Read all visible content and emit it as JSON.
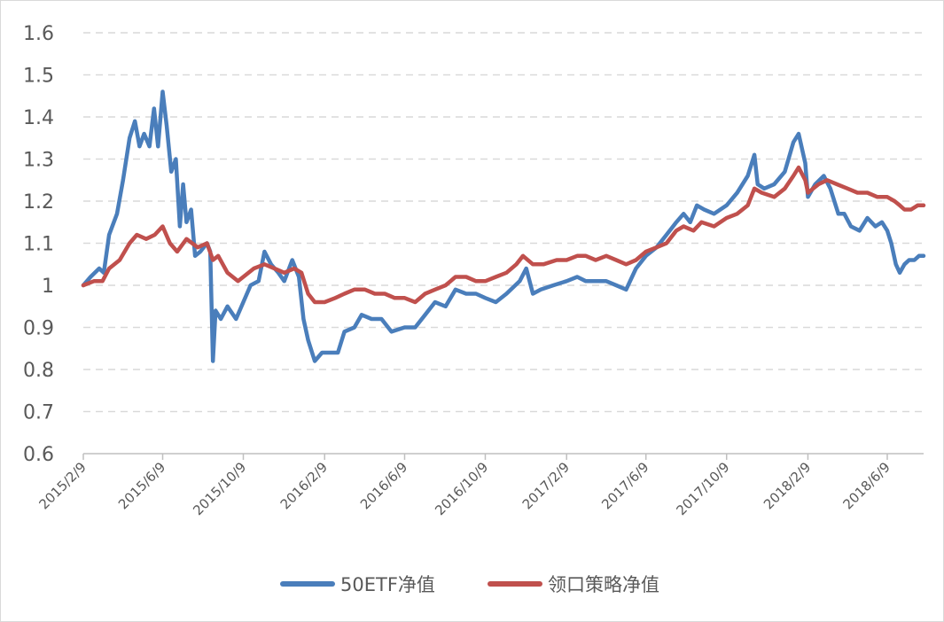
{
  "chart_data": {
    "type": "line",
    "title": "",
    "xlabel": "",
    "ylabel": "",
    "ylim": [
      0.6,
      1.6
    ],
    "y_ticks": [
      "0.6",
      "0.7",
      "0.8",
      "0.9",
      "1",
      "1.1",
      "1.2",
      "1.3",
      "1.4",
      "1.5",
      "1.6"
    ],
    "x_range": [
      "2015-02-09",
      "2018-08-03"
    ],
    "x_ticks": [
      {
        "date": "2015-02-09",
        "label": "2015/2/9"
      },
      {
        "date": "2015-06-09",
        "label": "2015/6/9"
      },
      {
        "date": "2015-10-09",
        "label": "2015/10/9"
      },
      {
        "date": "2016-02-09",
        "label": "2016/2/9"
      },
      {
        "date": "2016-06-09",
        "label": "2016/6/9"
      },
      {
        "date": "2016-10-09",
        "label": "2016/10/9"
      },
      {
        "date": "2017-02-09",
        "label": "2017/2/9"
      },
      {
        "date": "2017-06-09",
        "label": "2017/6/9"
      },
      {
        "date": "2017-10-09",
        "label": "2017/10/9"
      },
      {
        "date": "2018-02-09",
        "label": "2018/2/9"
      },
      {
        "date": "2018-06-09",
        "label": "2018/6/9"
      }
    ],
    "grid": "horizontal dashed",
    "legend_position": "bottom",
    "series": [
      {
        "name": "50ETF净值",
        "color": "#4a7ebb",
        "points": [
          [
            "2015-02-09",
            1.0
          ],
          [
            "2015-02-20",
            1.02
          ],
          [
            "2015-03-05",
            1.04
          ],
          [
            "2015-03-12",
            1.03
          ],
          [
            "2015-03-20",
            1.12
          ],
          [
            "2015-04-01",
            1.17
          ],
          [
            "2015-04-10",
            1.25
          ],
          [
            "2015-04-20",
            1.35
          ],
          [
            "2015-04-28",
            1.39
          ],
          [
            "2015-05-05",
            1.33
          ],
          [
            "2015-05-12",
            1.36
          ],
          [
            "2015-05-20",
            1.33
          ],
          [
            "2015-05-27",
            1.42
          ],
          [
            "2015-06-02",
            1.33
          ],
          [
            "2015-06-09",
            1.46
          ],
          [
            "2015-06-15",
            1.38
          ],
          [
            "2015-06-22",
            1.27
          ],
          [
            "2015-06-29",
            1.3
          ],
          [
            "2015-07-05",
            1.14
          ],
          [
            "2015-07-10",
            1.24
          ],
          [
            "2015-07-15",
            1.15
          ],
          [
            "2015-07-22",
            1.18
          ],
          [
            "2015-07-28",
            1.07
          ],
          [
            "2015-08-05",
            1.08
          ],
          [
            "2015-08-15",
            1.1
          ],
          [
            "2015-08-20",
            1.08
          ],
          [
            "2015-08-24",
            0.82
          ],
          [
            "2015-08-28",
            0.94
          ],
          [
            "2015-09-05",
            0.92
          ],
          [
            "2015-09-15",
            0.95
          ],
          [
            "2015-09-28",
            0.92
          ],
          [
            "2015-10-09",
            0.96
          ],
          [
            "2015-10-20",
            1.0
          ],
          [
            "2015-11-01",
            1.01
          ],
          [
            "2015-11-10",
            1.08
          ],
          [
            "2015-11-20",
            1.05
          ],
          [
            "2015-12-01",
            1.03
          ],
          [
            "2015-12-10",
            1.01
          ],
          [
            "2015-12-22",
            1.06
          ],
          [
            "2016-01-01",
            1.02
          ],
          [
            "2016-01-08",
            0.92
          ],
          [
            "2016-01-15",
            0.87
          ],
          [
            "2016-01-25",
            0.82
          ],
          [
            "2016-02-05",
            0.84
          ],
          [
            "2016-02-18",
            0.84
          ],
          [
            "2016-02-29",
            0.84
          ],
          [
            "2016-03-10",
            0.89
          ],
          [
            "2016-03-25",
            0.9
          ],
          [
            "2016-04-05",
            0.93
          ],
          [
            "2016-04-20",
            0.92
          ],
          [
            "2016-05-05",
            0.92
          ],
          [
            "2016-05-20",
            0.89
          ],
          [
            "2016-06-09",
            0.9
          ],
          [
            "2016-06-25",
            0.9
          ],
          [
            "2016-07-10",
            0.93
          ],
          [
            "2016-07-25",
            0.96
          ],
          [
            "2016-08-10",
            0.95
          ],
          [
            "2016-08-25",
            0.99
          ],
          [
            "2016-09-10",
            0.98
          ],
          [
            "2016-09-25",
            0.98
          ],
          [
            "2016-10-09",
            0.97
          ],
          [
            "2016-10-25",
            0.96
          ],
          [
            "2016-11-10",
            0.98
          ],
          [
            "2016-11-30",
            1.01
          ],
          [
            "2016-12-10",
            1.04
          ],
          [
            "2016-12-20",
            0.98
          ],
          [
            "2017-01-01",
            0.99
          ],
          [
            "2017-01-20",
            1.0
          ],
          [
            "2017-02-09",
            1.01
          ],
          [
            "2017-02-25",
            1.02
          ],
          [
            "2017-03-10",
            1.01
          ],
          [
            "2017-03-25",
            1.01
          ],
          [
            "2017-04-10",
            1.01
          ],
          [
            "2017-04-25",
            1.0
          ],
          [
            "2017-05-10",
            0.99
          ],
          [
            "2017-05-25",
            1.04
          ],
          [
            "2017-06-09",
            1.07
          ],
          [
            "2017-06-25",
            1.09
          ],
          [
            "2017-07-10",
            1.12
          ],
          [
            "2017-07-25",
            1.15
          ],
          [
            "2017-08-05",
            1.17
          ],
          [
            "2017-08-15",
            1.15
          ],
          [
            "2017-08-25",
            1.19
          ],
          [
            "2017-09-05",
            1.18
          ],
          [
            "2017-09-20",
            1.17
          ],
          [
            "2017-10-09",
            1.19
          ],
          [
            "2017-10-25",
            1.22
          ],
          [
            "2017-11-10",
            1.26
          ],
          [
            "2017-11-20",
            1.31
          ],
          [
            "2017-11-25",
            1.24
          ],
          [
            "2017-12-05",
            1.23
          ],
          [
            "2017-12-20",
            1.24
          ],
          [
            "2018-01-05",
            1.27
          ],
          [
            "2018-01-18",
            1.34
          ],
          [
            "2018-01-26",
            1.36
          ],
          [
            "2018-02-05",
            1.29
          ],
          [
            "2018-02-09",
            1.21
          ],
          [
            "2018-02-20",
            1.24
          ],
          [
            "2018-03-05",
            1.26
          ],
          [
            "2018-03-15",
            1.23
          ],
          [
            "2018-03-27",
            1.17
          ],
          [
            "2018-04-05",
            1.17
          ],
          [
            "2018-04-15",
            1.14
          ],
          [
            "2018-04-28",
            1.13
          ],
          [
            "2018-05-10",
            1.16
          ],
          [
            "2018-05-22",
            1.14
          ],
          [
            "2018-06-01",
            1.15
          ],
          [
            "2018-06-09",
            1.13
          ],
          [
            "2018-06-15",
            1.1
          ],
          [
            "2018-06-22",
            1.05
          ],
          [
            "2018-06-28",
            1.03
          ],
          [
            "2018-07-05",
            1.05
          ],
          [
            "2018-07-12",
            1.06
          ],
          [
            "2018-07-20",
            1.06
          ],
          [
            "2018-07-27",
            1.07
          ],
          [
            "2018-08-03",
            1.07
          ]
        ]
      },
      {
        "name": "领口策略净值",
        "color": "#c0504d",
        "points": [
          [
            "2015-02-09",
            1.0
          ],
          [
            "2015-02-25",
            1.01
          ],
          [
            "2015-03-10",
            1.01
          ],
          [
            "2015-03-20",
            1.04
          ],
          [
            "2015-04-05",
            1.06
          ],
          [
            "2015-04-20",
            1.1
          ],
          [
            "2015-05-01",
            1.12
          ],
          [
            "2015-05-15",
            1.11
          ],
          [
            "2015-05-28",
            1.12
          ],
          [
            "2015-06-09",
            1.14
          ],
          [
            "2015-06-20",
            1.1
          ],
          [
            "2015-07-01",
            1.08
          ],
          [
            "2015-07-15",
            1.11
          ],
          [
            "2015-08-01",
            1.09
          ],
          [
            "2015-08-15",
            1.1
          ],
          [
            "2015-08-24",
            1.06
          ],
          [
            "2015-09-01",
            1.07
          ],
          [
            "2015-09-15",
            1.03
          ],
          [
            "2015-10-01",
            1.01
          ],
          [
            "2015-10-09",
            1.02
          ],
          [
            "2015-10-25",
            1.04
          ],
          [
            "2015-11-10",
            1.05
          ],
          [
            "2015-11-25",
            1.04
          ],
          [
            "2015-12-10",
            1.03
          ],
          [
            "2015-12-25",
            1.04
          ],
          [
            "2016-01-05",
            1.03
          ],
          [
            "2016-01-15",
            0.98
          ],
          [
            "2016-01-25",
            0.96
          ],
          [
            "2016-02-09",
            0.96
          ],
          [
            "2016-02-25",
            0.97
          ],
          [
            "2016-03-10",
            0.98
          ],
          [
            "2016-03-25",
            0.99
          ],
          [
            "2016-04-10",
            0.99
          ],
          [
            "2016-04-25",
            0.98
          ],
          [
            "2016-05-10",
            0.98
          ],
          [
            "2016-05-25",
            0.97
          ],
          [
            "2016-06-09",
            0.97
          ],
          [
            "2016-06-25",
            0.96
          ],
          [
            "2016-07-10",
            0.98
          ],
          [
            "2016-07-25",
            0.99
          ],
          [
            "2016-08-10",
            1.0
          ],
          [
            "2016-08-25",
            1.02
          ],
          [
            "2016-09-10",
            1.02
          ],
          [
            "2016-09-25",
            1.01
          ],
          [
            "2016-10-09",
            1.01
          ],
          [
            "2016-10-25",
            1.02
          ],
          [
            "2016-11-10",
            1.03
          ],
          [
            "2016-11-25",
            1.05
          ],
          [
            "2016-12-05",
            1.07
          ],
          [
            "2016-12-20",
            1.05
          ],
          [
            "2017-01-05",
            1.05
          ],
          [
            "2017-01-25",
            1.06
          ],
          [
            "2017-02-09",
            1.06
          ],
          [
            "2017-02-25",
            1.07
          ],
          [
            "2017-03-10",
            1.07
          ],
          [
            "2017-03-25",
            1.06
          ],
          [
            "2017-04-10",
            1.07
          ],
          [
            "2017-04-25",
            1.06
          ],
          [
            "2017-05-10",
            1.05
          ],
          [
            "2017-05-25",
            1.06
          ],
          [
            "2017-06-09",
            1.08
          ],
          [
            "2017-06-25",
            1.09
          ],
          [
            "2017-07-10",
            1.1
          ],
          [
            "2017-07-25",
            1.13
          ],
          [
            "2017-08-05",
            1.14
          ],
          [
            "2017-08-20",
            1.13
          ],
          [
            "2017-09-01",
            1.15
          ],
          [
            "2017-09-20",
            1.14
          ],
          [
            "2017-10-09",
            1.16
          ],
          [
            "2017-10-25",
            1.17
          ],
          [
            "2017-11-10",
            1.19
          ],
          [
            "2017-11-20",
            1.23
          ],
          [
            "2017-12-01",
            1.22
          ],
          [
            "2017-12-20",
            1.21
          ],
          [
            "2018-01-05",
            1.23
          ],
          [
            "2018-01-18",
            1.26
          ],
          [
            "2018-01-26",
            1.28
          ],
          [
            "2018-02-05",
            1.25
          ],
          [
            "2018-02-09",
            1.22
          ],
          [
            "2018-02-25",
            1.24
          ],
          [
            "2018-03-10",
            1.25
          ],
          [
            "2018-03-25",
            1.24
          ],
          [
            "2018-04-10",
            1.23
          ],
          [
            "2018-04-25",
            1.22
          ],
          [
            "2018-05-10",
            1.22
          ],
          [
            "2018-05-25",
            1.21
          ],
          [
            "2018-06-09",
            1.21
          ],
          [
            "2018-06-20",
            1.2
          ],
          [
            "2018-06-28",
            1.19
          ],
          [
            "2018-07-05",
            1.18
          ],
          [
            "2018-07-15",
            1.18
          ],
          [
            "2018-07-25",
            1.19
          ],
          [
            "2018-08-03",
            1.19
          ]
        ]
      }
    ]
  }
}
